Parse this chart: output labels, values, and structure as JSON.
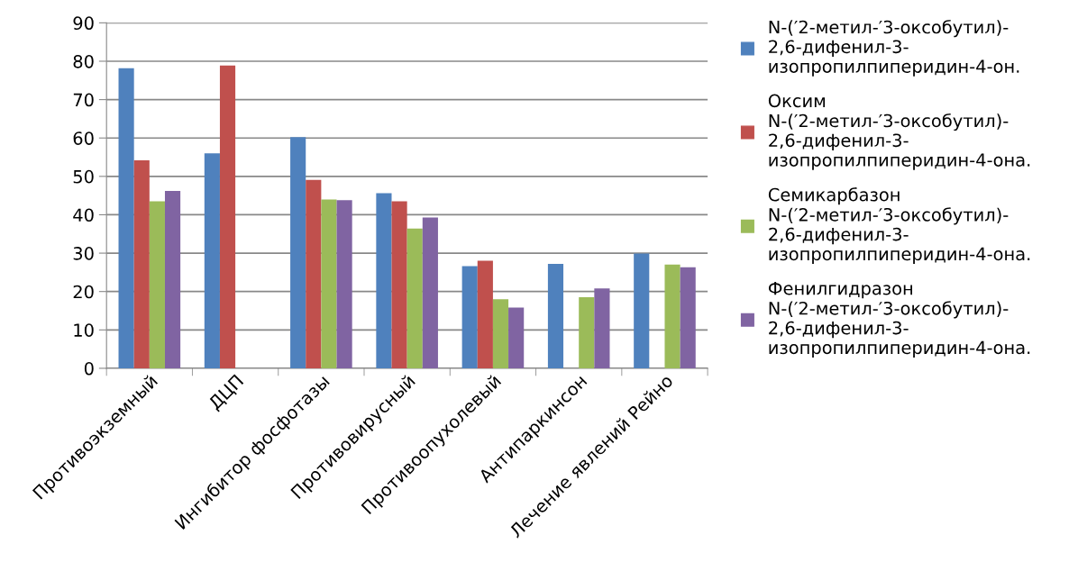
{
  "chart_data": {
    "type": "bar",
    "categories": [
      "Противоэкземный",
      "ДЦП",
      "Ингибитор фосфотазы",
      "Противовирусный",
      "Противоопухолевый",
      "Антипаркинсон",
      "Лечение явлений Рейно"
    ],
    "series": [
      {
        "name": "N-(′2-метил-′3-оксобутил)-2,6-дифенил-3-изопропилпиперидин-4-он.",
        "color": "#4f81bd",
        "values": [
          78.2,
          56.0,
          60.2,
          45.6,
          26.6,
          27.2,
          29.9
        ]
      },
      {
        "name": "Оксим N-(′2-метил-′3-оксобутил)-2,6-дифенил-3-изопропилпиперидин-4-она.",
        "color": "#c0504d",
        "values": [
          54.2,
          78.9,
          49.1,
          43.5,
          28.0,
          null,
          null
        ]
      },
      {
        "name": "Семикарбазон N-(′2-метил-′3-оксобутил)-2,6-дифенил-3-изопропилпиперидин-4-она.",
        "color": "#9bbb59",
        "values": [
          43.5,
          null,
          44.0,
          36.4,
          18.0,
          18.5,
          27.0
        ]
      },
      {
        "name": "Фенилгидразон N-(′2-метил-′3-оксобутил)-2,6-дифенил-3-изопропилпиперидин-4-она.",
        "color": "#8064a2",
        "values": [
          46.2,
          null,
          43.8,
          39.3,
          15.8,
          20.8,
          26.3
        ]
      }
    ],
    "ylim": [
      0,
      90
    ],
    "yticks": [
      0,
      10,
      20,
      30,
      40,
      50,
      60,
      70,
      80,
      90
    ],
    "grid": "y",
    "legend": "right"
  }
}
